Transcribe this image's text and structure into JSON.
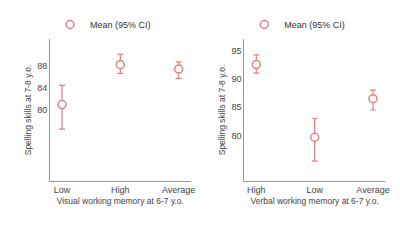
{
  "chart_data": [
    {
      "type": "scatter",
      "xlabel": "Visual working memory at 6-7 y.o.",
      "ylabel": "Spelling skills at 7-8 y.o.",
      "categories": [
        "Low",
        "High",
        "Average"
      ],
      "series": [
        {
          "name": "Mean (95% CI)",
          "color": "#e08080",
          "marker": "open_circle",
          "values": [
            81.0,
            88.3,
            87.5
          ],
          "ci_low": [
            76.5,
            86.7,
            85.8
          ],
          "ci_high": [
            84.5,
            90.2,
            88.8
          ]
        }
      ],
      "ylim": [
        67,
        93
      ],
      "yticks": [
        80,
        84,
        88
      ],
      "grid": false,
      "legend": "upper left"
    },
    {
      "type": "scatter",
      "xlabel": "Verbal working memory at 6-7 y.o.",
      "ylabel": "Spelling skills at 7-8 y.o.",
      "categories": [
        "High",
        "Low",
        "Average"
      ],
      "series": [
        {
          "name": "Mean (95% CI)",
          "color": "#e08080",
          "marker": "open_circle",
          "values": [
            92.5,
            79.7,
            86.5
          ],
          "ci_low": [
            91.0,
            75.5,
            84.5
          ],
          "ci_high": [
            94.2,
            83.0,
            88.0
          ]
        }
      ],
      "ylim": [
        72,
        97
      ],
      "yticks": [
        80,
        85,
        90,
        95
      ],
      "grid": false,
      "legend": "upper left"
    }
  ]
}
